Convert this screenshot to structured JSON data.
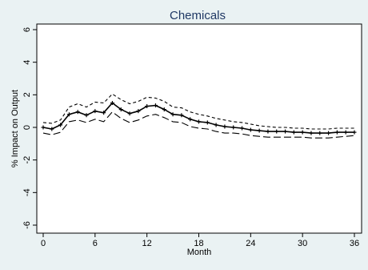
{
  "chart_data": {
    "type": "line",
    "title": "Chemicals",
    "xlabel": "Month",
    "ylabel": "% Impact on Output",
    "xlim": [
      0,
      36
    ],
    "ylim": [
      -6,
      6
    ],
    "xticks": [
      "0",
      "6",
      "12",
      "18",
      "24",
      "30",
      "36"
    ],
    "yticks": [
      "-6",
      "-4",
      "-2",
      "0",
      "2",
      "4",
      "6"
    ],
    "grid": false,
    "legend": "none",
    "x": [
      0,
      1,
      2,
      3,
      4,
      5,
      6,
      7,
      8,
      9,
      10,
      11,
      12,
      13,
      14,
      15,
      16,
      17,
      18,
      19,
      20,
      21,
      22,
      23,
      24,
      25,
      26,
      27,
      28,
      29,
      30,
      31,
      32,
      33,
      34,
      35,
      36
    ],
    "series": [
      {
        "role": "estimate",
        "style": "solid-with-markers",
        "color": "#000000",
        "values": [
          0.0,
          -0.1,
          0.15,
          0.8,
          0.95,
          0.75,
          1.0,
          0.9,
          1.5,
          1.1,
          0.85,
          1.0,
          1.3,
          1.35,
          1.1,
          0.8,
          0.75,
          0.5,
          0.35,
          0.3,
          0.15,
          0.05,
          0.0,
          -0.05,
          -0.15,
          -0.2,
          -0.25,
          -0.25,
          -0.25,
          -0.3,
          -0.3,
          -0.35,
          -0.35,
          -0.35,
          -0.3,
          -0.3,
          -0.3
        ]
      },
      {
        "role": "upper-band",
        "style": "short-dash",
        "color": "#000000",
        "values": [
          0.3,
          0.25,
          0.45,
          1.25,
          1.45,
          1.25,
          1.55,
          1.5,
          2.05,
          1.7,
          1.45,
          1.6,
          1.85,
          1.8,
          1.6,
          1.25,
          1.2,
          0.95,
          0.8,
          0.7,
          0.55,
          0.45,
          0.35,
          0.3,
          0.2,
          0.1,
          0.05,
          0.0,
          0.0,
          -0.05,
          -0.05,
          -0.1,
          -0.1,
          -0.1,
          -0.05,
          -0.05,
          -0.05
        ]
      },
      {
        "role": "lower-band",
        "style": "long-dash",
        "color": "#000000",
        "values": [
          -0.35,
          -0.45,
          -0.3,
          0.35,
          0.45,
          0.3,
          0.5,
          0.35,
          0.95,
          0.55,
          0.3,
          0.45,
          0.7,
          0.8,
          0.6,
          0.35,
          0.3,
          0.05,
          -0.05,
          -0.1,
          -0.25,
          -0.35,
          -0.35,
          -0.4,
          -0.5,
          -0.55,
          -0.6,
          -0.6,
          -0.6,
          -0.6,
          -0.6,
          -0.65,
          -0.65,
          -0.65,
          -0.6,
          -0.55,
          -0.5
        ]
      }
    ]
  }
}
